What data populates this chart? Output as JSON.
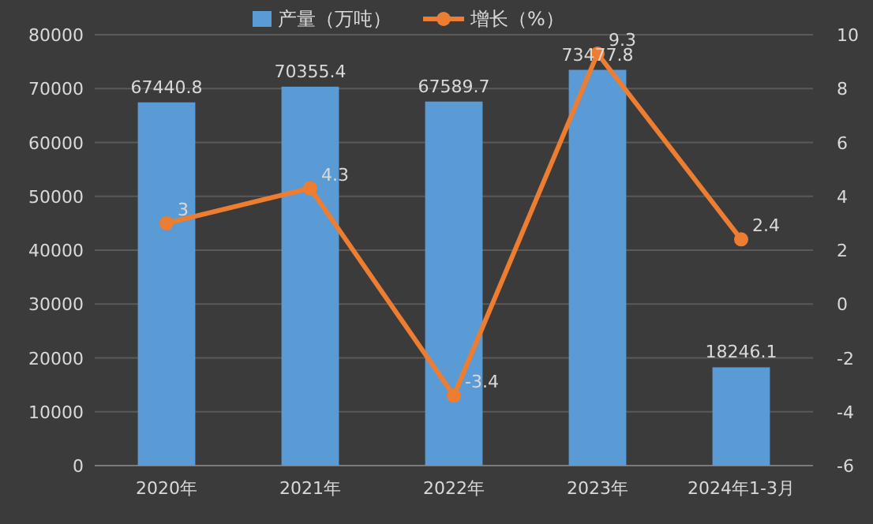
{
  "chart_data": {
    "type": "bar",
    "categories": [
      "2020年",
      "2021年",
      "2022年",
      "2023年",
      "2024年1-3月"
    ],
    "series": [
      {
        "name": "产量（万吨）",
        "color": "#5b9bd5",
        "values": [
          67440.8,
          70355.4,
          67589.7,
          73477.8,
          18246.1
        ]
      },
      {
        "name": "增长（%）",
        "type": "line",
        "axis": "y2",
        "color": "#ed7d31",
        "marker": "circle",
        "values": [
          3,
          4.3,
          -3.4,
          9.3,
          2.4
        ]
      }
    ],
    "ylim": [
      0,
      80000
    ],
    "yticks": [
      0,
      10000,
      20000,
      30000,
      40000,
      50000,
      60000,
      70000,
      80000
    ],
    "y2lim": [
      -6,
      10
    ],
    "y2ticks": [
      -6,
      -4,
      -2,
      0,
      2,
      4,
      6,
      8,
      10
    ],
    "grid": "y",
    "legend": "top",
    "data_labels": true
  }
}
